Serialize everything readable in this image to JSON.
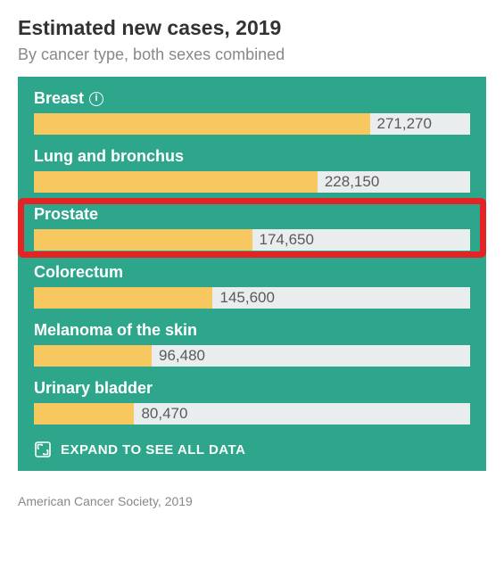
{
  "title": "Estimated new cases, 2019",
  "subtitle": "By cancer type, both sexes combined",
  "panel": {
    "background_color": "#2ea68c",
    "bar_fill_color": "#f6c85f",
    "bar_track_color": "#e9edee",
    "label_color": "#ffffff",
    "value_color": "#5a5a5a",
    "max_value": 271270,
    "label_fontsize": 18,
    "value_fontsize": 17,
    "rows": [
      {
        "label": "Breast",
        "value": 271270,
        "value_text": "271,270",
        "has_info_icon": true,
        "fill_pct": 77,
        "highlighted": false
      },
      {
        "label": "Lung and bronchus",
        "value": 228150,
        "value_text": "228,150",
        "has_info_icon": false,
        "fill_pct": 65,
        "highlighted": false
      },
      {
        "label": "Prostate",
        "value": 174650,
        "value_text": "174,650",
        "has_info_icon": false,
        "fill_pct": 50,
        "highlighted": true
      },
      {
        "label": "Colorectum",
        "value": 145600,
        "value_text": "145,600",
        "has_info_icon": false,
        "fill_pct": 41,
        "highlighted": false
      },
      {
        "label": "Melanoma of the skin",
        "value": 96480,
        "value_text": "96,480",
        "has_info_icon": false,
        "fill_pct": 27,
        "highlighted": false
      },
      {
        "label": "Urinary bladder",
        "value": 80470,
        "value_text": "80,470",
        "has_info_icon": false,
        "fill_pct": 23,
        "highlighted": false
      }
    ],
    "expand_label": "EXPAND TO SEE ALL DATA"
  },
  "highlight": {
    "border_color": "#e42424",
    "border_width": 7,
    "border_radius": 6
  },
  "source": "American Cancer Society, 2019"
}
